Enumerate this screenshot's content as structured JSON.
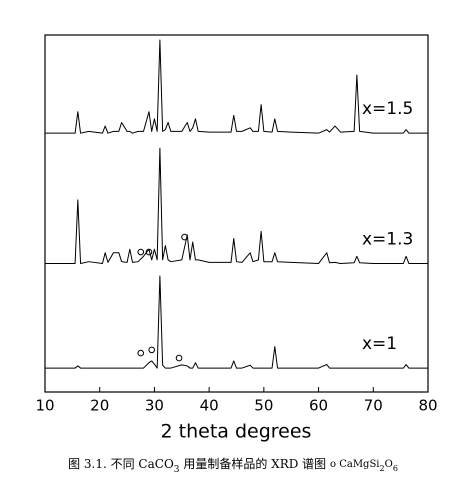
{
  "chart_data": {
    "type": "line",
    "x_label": "2 theta degrees",
    "x": [
      10,
      15.5,
      16,
      16.5,
      18,
      20.5,
      21,
      21.5,
      22.5,
      23.5,
      24,
      25,
      25.5,
      26,
      27,
      28,
      29,
      29.5,
      30,
      30.5,
      31,
      31.5,
      32,
      32.5,
      33,
      35,
      36,
      36.5,
      37,
      37.5,
      38,
      40,
      44,
      44.5,
      45,
      46,
      47.5,
      48,
      49,
      49.5,
      50,
      51.5,
      52,
      52.5,
      55,
      60,
      61.5,
      62,
      63,
      64,
      66.5,
      67,
      67.5,
      70,
      75.5,
      76,
      76.5,
      80
    ],
    "series": [
      {
        "name": "x=1.5",
        "color": "#000000",
        "values": [
          72.5,
          72.5,
          78.5,
          72.5,
          73,
          72.5,
          74.5,
          72.5,
          73,
          73,
          75.5,
          73,
          73,
          72.5,
          73,
          73,
          78.5,
          73,
          76.5,
          73,
          98.6,
          73,
          73.5,
          75.5,
          73,
          73,
          75.5,
          73,
          74,
          76.5,
          73,
          72.8,
          72.8,
          77.5,
          73,
          73,
          74,
          73,
          73,
          80.5,
          73,
          72.8,
          76.5,
          73,
          72.8,
          72.5,
          73.5,
          72.8,
          74.5,
          72.8,
          73,
          88.8,
          73,
          72.5,
          72.5,
          73.5,
          72.5,
          72.5
        ]
      },
      {
        "name": "x=1.3",
        "color": "#000000",
        "values": [
          36,
          36,
          53.8,
          36,
          36.5,
          36,
          39,
          36.3,
          39,
          39,
          36.5,
          36.3,
          40,
          36.3,
          36.5,
          38,
          40,
          37,
          40,
          37,
          68.3,
          37,
          41,
          37,
          36.5,
          37,
          44,
          37,
          42,
          37,
          37,
          36.3,
          36.3,
          43,
          36.5,
          36.3,
          39,
          36.5,
          37,
          45,
          36.5,
          36.5,
          39,
          36.5,
          36.3,
          36,
          39,
          36.2,
          36.3,
          36,
          36.2,
          38,
          36.2,
          36,
          36,
          38,
          36,
          36
        ]
      },
      {
        "name": "x=1",
        "color": "#000000",
        "values": [
          6.7,
          6.7,
          7.3,
          6.7,
          6.7,
          6.7,
          6.7,
          6.7,
          6.7,
          6.7,
          6.7,
          6.7,
          6.7,
          6.7,
          6.7,
          6.7,
          8.2,
          8.7,
          7.8,
          6.7,
          32.5,
          7.5,
          6.7,
          6.7,
          6.7,
          7.6,
          7.3,
          6.7,
          6.7,
          8.2,
          6.7,
          6.7,
          6.7,
          8.7,
          6.7,
          6.7,
          7.5,
          6.7,
          6.7,
          6.7,
          6.7,
          6.7,
          12.7,
          6.7,
          6.7,
          6.7,
          7.7,
          6.7,
          6.7,
          6.7,
          6.7,
          6.7,
          6.7,
          6.7,
          6.7,
          7.7,
          6.7,
          6.7
        ]
      }
    ],
    "markers": {
      "x": [
        27.5,
        29,
        35.5,
        27.5,
        29.5,
        34.5
      ],
      "y": [
        39.2,
        39.2,
        43.4,
        10.9,
        11.8,
        9.5
      ]
    },
    "xlim": [
      10,
      80
    ],
    "xticks": [
      10,
      20,
      30,
      40,
      50,
      60,
      70,
      80
    ],
    "ylim": [
      0,
      100
    ],
    "caption": [
      "图 3.1. 不同 CaCO",
      "3",
      " 用量制备样品的 XRD 谱图 ",
      "o CaMgSi",
      "2",
      "O",
      "6"
    ]
  }
}
